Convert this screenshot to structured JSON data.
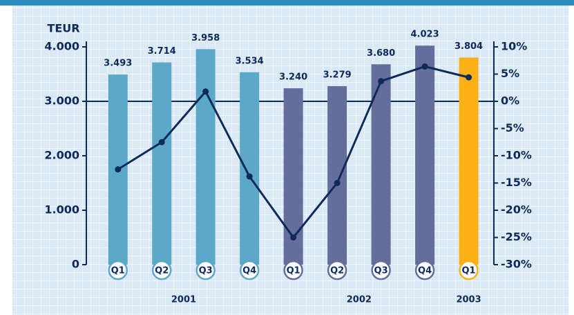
{
  "chart_data": {
    "type": "bar_line",
    "y_axis_label": "TEUR",
    "categories": [
      "Q1",
      "Q2",
      "Q3",
      "Q4",
      "Q1",
      "Q2",
      "Q3",
      "Q4",
      "Q1"
    ],
    "years": [
      "2001",
      "2001",
      "2001",
      "2001",
      "2002",
      "2002",
      "2002",
      "2002",
      "2003"
    ],
    "series": [
      {
        "name": "TEUR",
        "type": "bar",
        "colors": [
          "#5ba8c8",
          "#5ba8c8",
          "#5ba8c8",
          "#5ba8c8",
          "#656e9a",
          "#656e9a",
          "#656e9a",
          "#656e9a",
          "#fbb016"
        ],
        "values": [
          3493,
          3714,
          3958,
          3534,
          3240,
          3279,
          3680,
          4023,
          3804
        ],
        "value_labels": [
          "3.493",
          "3.714",
          "3.958",
          "3.534",
          "3.240",
          "3.279",
          "3.680",
          "4.023",
          "3.804"
        ]
      },
      {
        "name": "%",
        "type": "line",
        "axis": "y2",
        "color": "#0d2a5a",
        "values": [
          -12.5,
          -7.5,
          1.8,
          -13.8,
          -25,
          -15,
          3.7,
          6.4,
          4.4
        ]
      }
    ],
    "ylim": [
      0,
      4000
    ],
    "yticks": [
      0,
      {
        "value": 1000,
        "label": "1.000"
      },
      {
        "value": 2000,
        "label": "2.000"
      },
      {
        "value": 3000,
        "label": "3.000"
      },
      {
        "value": 4000,
        "label": "4.000"
      }
    ],
    "y2lim": [
      -30,
      10
    ],
    "y2ticks": [
      {
        "value": 10,
        "label": "10%"
      },
      {
        "value": 5,
        "label": "5%"
      },
      {
        "value": 0,
        "label": "0%"
      },
      {
        "value": -5,
        "label": "-5%"
      },
      {
        "value": -10,
        "label": "-10%"
      },
      {
        "value": -15,
        "label": "-15%"
      },
      {
        "value": -20,
        "label": "-20%"
      },
      {
        "value": -25,
        "label": "-25%"
      },
      {
        "value": -30,
        "label": "-30%"
      }
    ]
  }
}
